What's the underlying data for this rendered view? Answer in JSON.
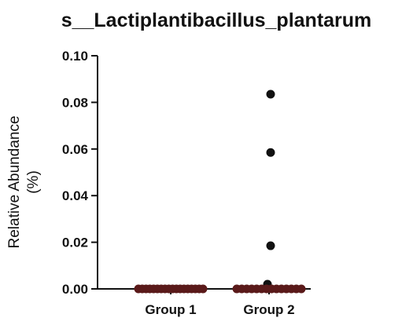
{
  "chart_data": {
    "type": "scatter",
    "title": "s__Lactiplantibacillus_plantarum",
    "ylabel_lines": [
      "Relative Abundance",
      "(%)"
    ],
    "categories": [
      "Group 1",
      "Group 2"
    ],
    "ylim": [
      0,
      0.1
    ],
    "yticks": [
      "0.00",
      "0.02",
      "0.04",
      "0.06",
      "0.08",
      "0.10"
    ],
    "ytick_values": [
      0,
      0.02,
      0.04,
      0.06,
      0.08,
      0.1
    ],
    "grid": false,
    "legend": "none",
    "series": [
      {
        "category": "Group 1",
        "values": [
          0,
          0,
          0,
          0,
          0,
          0,
          0,
          0,
          0,
          0,
          0,
          0,
          0,
          0,
          0,
          0,
          0,
          0
        ]
      },
      {
        "category": "Group 2",
        "values": [
          0.0835,
          0.0585,
          0.0185,
          0.002,
          0,
          0,
          0,
          0,
          0,
          0,
          0,
          0,
          0,
          0,
          0,
          0,
          0,
          0
        ]
      }
    ],
    "colors": {
      "point": "#111111",
      "zero_band": "#5a1a1a",
      "axis": "#111111"
    }
  }
}
